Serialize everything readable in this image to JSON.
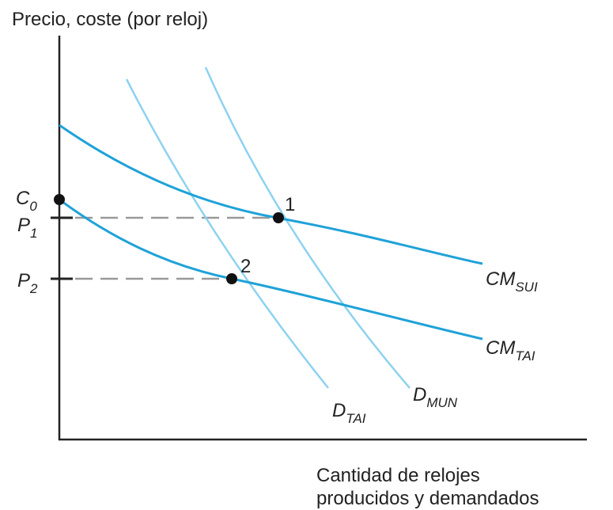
{
  "axes": {
    "y_label": "Precio, coste (por reloj)",
    "x_label": [
      "Cantidad de relojes",
      "producidos y demandados"
    ]
  },
  "ticks": [
    {
      "main": "C",
      "sub": "0"
    },
    {
      "main": "P",
      "sub": "1"
    },
    {
      "main": "P",
      "sub": "2"
    }
  ],
  "curves": [
    {
      "main": "CM",
      "sub": "SUI"
    },
    {
      "main": "CM",
      "sub": "TAI"
    },
    {
      "main": "D",
      "sub": "TAI"
    },
    {
      "main": "D",
      "sub": "MUN"
    }
  ],
  "points": [
    "1",
    "2"
  ]
}
